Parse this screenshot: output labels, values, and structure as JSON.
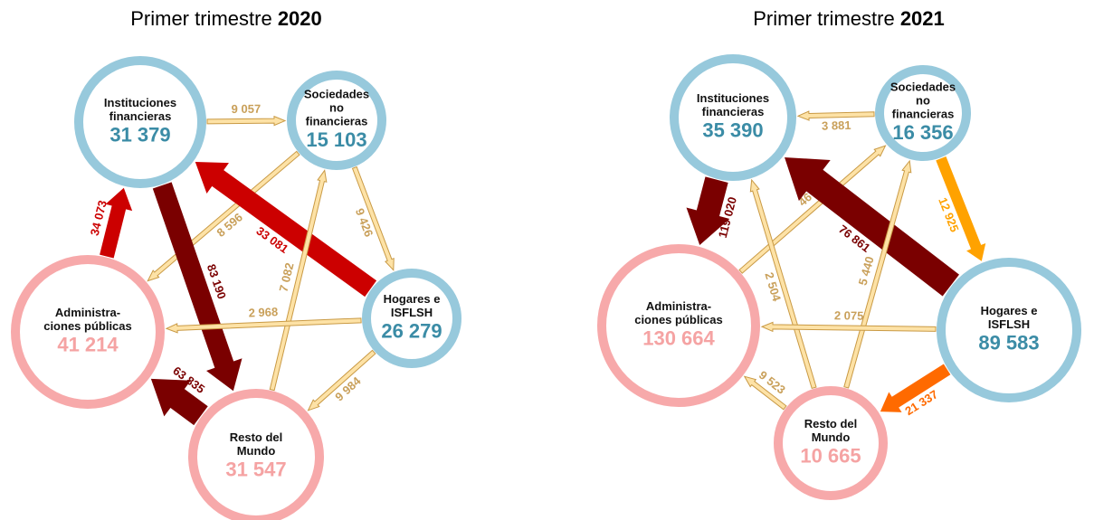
{
  "diagrams": [
    {
      "title": "Primer trimestre",
      "year": "2020",
      "nodes": [
        {
          "label": [
            "Instituciones",
            "financieras"
          ],
          "value": "31 379"
        },
        {
          "label": [
            "Sociedades",
            "no",
            "financieras"
          ],
          "value": "15 103"
        },
        {
          "label": [
            "Hogares e",
            "ISFLSH"
          ],
          "value": "26 279"
        },
        {
          "label": [
            "Resto del",
            "Mundo"
          ],
          "value": "31 547"
        },
        {
          "label": [
            "Administra-",
            "ciones públicas"
          ],
          "value": "41 214"
        }
      ],
      "edges": [
        {
          "label": "9 057"
        },
        {
          "label": "8 596"
        },
        {
          "label": "9 426"
        },
        {
          "label": "33 081"
        },
        {
          "label": "34 073"
        },
        {
          "label": "83 190"
        },
        {
          "label": "63 835"
        },
        {
          "label": "7 082"
        },
        {
          "label": "2 968"
        },
        {
          "label": "9 984"
        }
      ]
    },
    {
      "title": "Primer trimestre",
      "year": "2021",
      "nodes": [
        {
          "label": [
            "Instituciones",
            "financieras"
          ],
          "value": "35 390"
        },
        {
          "label": [
            "Sociedades",
            "no",
            "financieras"
          ],
          "value": "16 356"
        },
        {
          "label": [
            "Hogares e",
            "ISFLSH"
          ],
          "value": "89 583"
        },
        {
          "label": [
            "Resto del",
            "Mundo"
          ],
          "value": "10 665"
        },
        {
          "label": [
            "Administra-",
            "ciones públicas"
          ],
          "value": "130 664"
        }
      ],
      "edges": [
        {
          "label": "3 881"
        },
        {
          "label": "119 020"
        },
        {
          "label": "46"
        },
        {
          "label": "76 861"
        },
        {
          "label": "12 925"
        },
        {
          "label": "2 504"
        },
        {
          "label": "5 440"
        },
        {
          "label": "2 075"
        },
        {
          "label": "9 523"
        },
        {
          "label": "21 337"
        }
      ]
    }
  ]
}
